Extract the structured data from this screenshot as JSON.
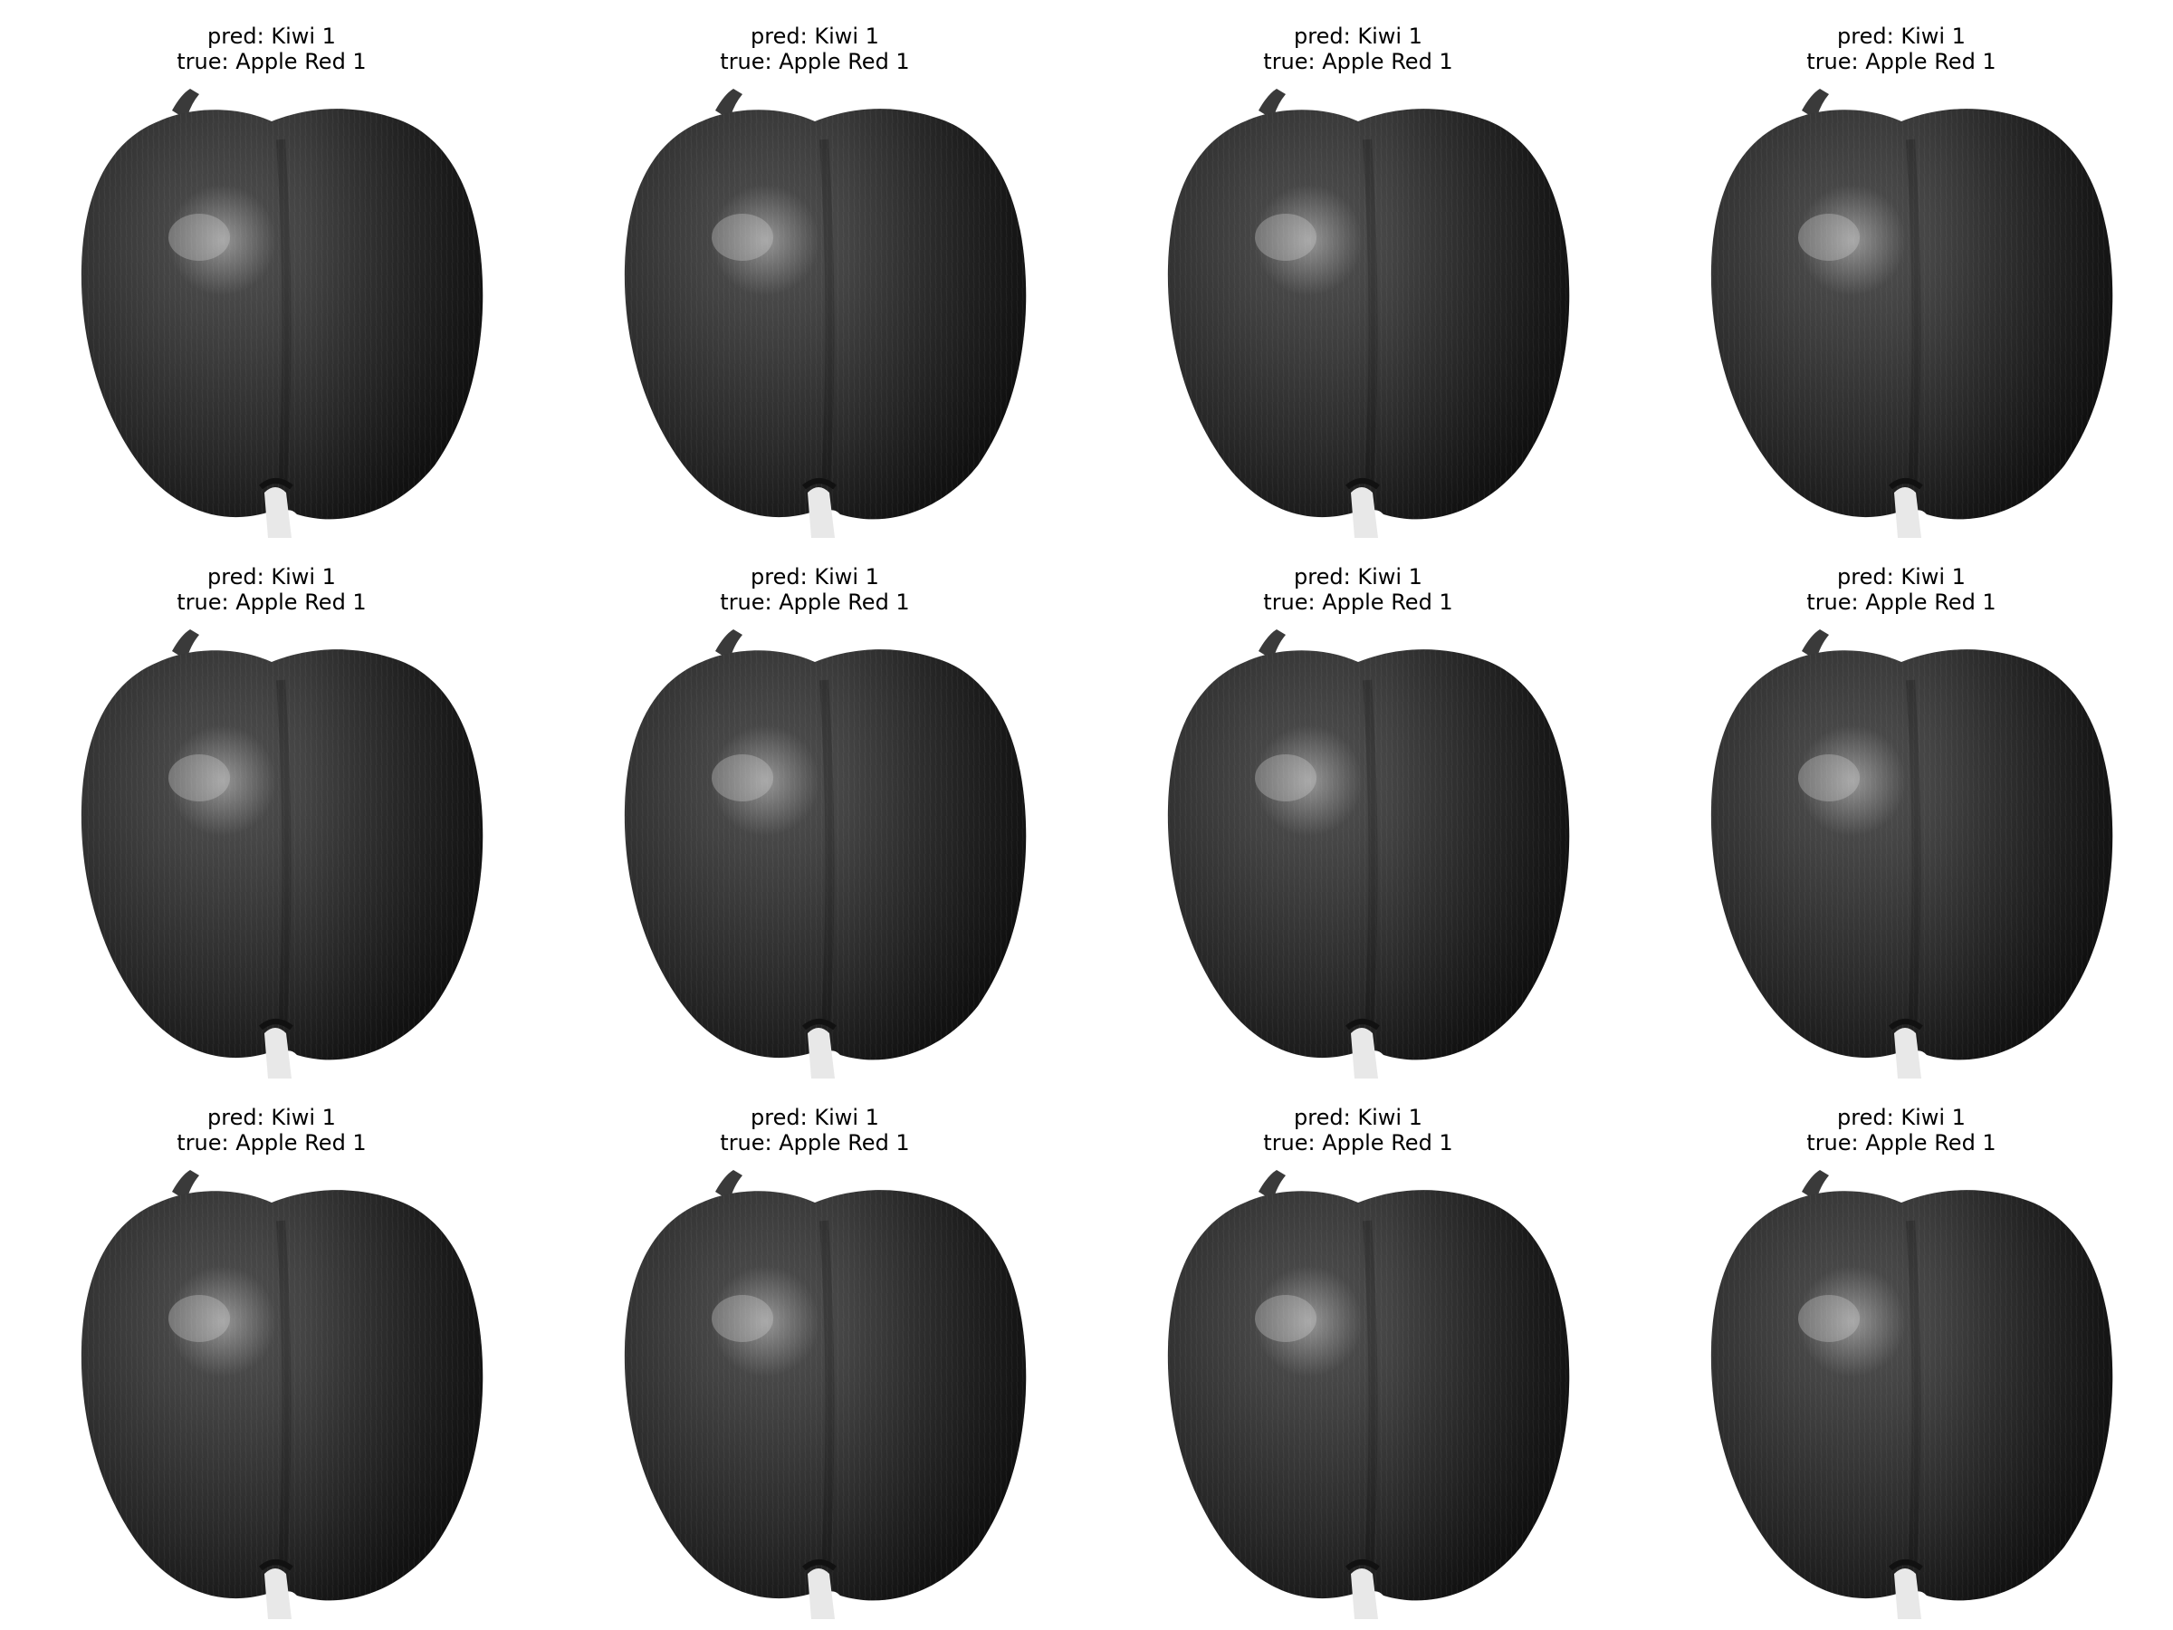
{
  "figure": {
    "panels": [
      {
        "pred": "pred: Kiwi 1",
        "true": "true: Apple Red 1"
      },
      {
        "pred": "pred: Kiwi 1",
        "true": "true: Apple Red 1"
      },
      {
        "pred": "pred: Kiwi 1",
        "true": "true: Apple Red 1"
      },
      {
        "pred": "pred: Kiwi 1",
        "true": "true: Apple Red 1"
      },
      {
        "pred": "pred: Kiwi 1",
        "true": "true: Apple Red 1"
      },
      {
        "pred": "pred: Kiwi 1",
        "true": "true: Apple Red 1"
      },
      {
        "pred": "pred: Kiwi 1",
        "true": "true: Apple Red 1"
      },
      {
        "pred": "pred: Kiwi 1",
        "true": "true: Apple Red 1"
      },
      {
        "pred": "pred: Kiwi 1",
        "true": "true: Apple Red 1"
      },
      {
        "pred": "pred: Kiwi 1",
        "true": "true: Apple Red 1"
      },
      {
        "pred": "pred: Kiwi 1",
        "true": "true: Apple Red 1"
      },
      {
        "pred": "pred: Kiwi 1",
        "true": "true: Apple Red 1"
      }
    ],
    "colors": {
      "background": "#ffffff",
      "fruit_dark": "#2a2a2a",
      "fruit_mid": "#4a4a4a",
      "highlight": "#9a9a9a",
      "text": "#000000"
    }
  }
}
